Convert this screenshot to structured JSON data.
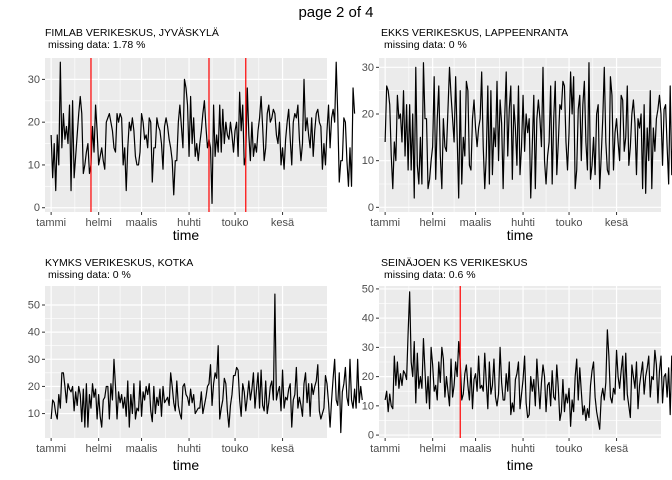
{
  "page_title": "page 2 of 4",
  "colors": {
    "panel_bg": "#ebebeb",
    "grid": "#ffffff",
    "line": "#000000",
    "missing_marker": "#ff0000",
    "text": "#4d4d4d"
  },
  "chart_data": [
    {
      "type": "line",
      "title": "FIMLAB VERIKESKUS, JYVÄSKYLÄ",
      "subtitle": "missing data:  1.78 %",
      "xlabel": "time",
      "ylabel": "",
      "x_ticks": [
        "tammi",
        "helmi",
        "maalis",
        "huhti",
        "touko",
        "kesä"
      ],
      "y_ticks": [
        0,
        10,
        20,
        30
      ],
      "ylim": [
        -1,
        35
      ],
      "xlim_days": [
        -4,
        180
      ],
      "missing_marker_days": [
        26,
        103,
        127
      ],
      "values": [
        17,
        7,
        15,
        4,
        17,
        10,
        34,
        14,
        22,
        16,
        19,
        15,
        24,
        4,
        25,
        7,
        12,
        17,
        22,
        26,
        22,
        8,
        10,
        13,
        15,
        8,
        10,
        19,
        13,
        24,
        18,
        10,
        12,
        14,
        11,
        9,
        20,
        21,
        22,
        20,
        18,
        14,
        13,
        22,
        20,
        22,
        21,
        10,
        14,
        4,
        14,
        20,
        18,
        21,
        18,
        12,
        10,
        10,
        13,
        22,
        20,
        16,
        17,
        14,
        21,
        20,
        6,
        14,
        14,
        21,
        19,
        18,
        15,
        9,
        19,
        21,
        19,
        16,
        14,
        11,
        3,
        11,
        11,
        20,
        24,
        19,
        14,
        30,
        28,
        24,
        12,
        26,
        15,
        21,
        12,
        15,
        11,
        15,
        18,
        22,
        25,
        19,
        14,
        16,
        14,
        1,
        24,
        12,
        17,
        13,
        24,
        13,
        23,
        15,
        20,
        17,
        16,
        20,
        17,
        13,
        18,
        20,
        12,
        27,
        18,
        24,
        10,
        12,
        28,
        17,
        11,
        20,
        12,
        15,
        13,
        18,
        21,
        26,
        19,
        11,
        14,
        22,
        24,
        20,
        21,
        23,
        22,
        17,
        15,
        20,
        10,
        14,
        9,
        16,
        20,
        23,
        16,
        10,
        20,
        22,
        21,
        24,
        16,
        11,
        15,
        30,
        18,
        21,
        17,
        14,
        21,
        12,
        18,
        22,
        23,
        20,
        19,
        9,
        15,
        10,
        18,
        24,
        14,
        21,
        23,
        20,
        34,
        22,
        6,
        11,
        11,
        21,
        20,
        11,
        5,
        14,
        5,
        28,
        22
      ]
    },
    {
      "type": "line",
      "title": "EKKS VERIKESKUS, LAPPEENRANTA",
      "subtitle": "missing data:  0 %",
      "xlabel": "time",
      "ylabel": "",
      "x_ticks": [
        "tammi",
        "helmi",
        "maalis",
        "huhti",
        "touko",
        "kesä"
      ],
      "y_ticks": [
        0,
        10,
        20,
        30
      ],
      "ylim": [
        -1,
        32
      ],
      "xlim_days": [
        -4,
        180
      ],
      "missing_marker_days": [],
      "values": [
        14,
        26,
        25,
        22,
        11,
        4,
        14,
        10,
        24,
        19,
        20,
        14,
        25,
        11,
        22,
        8,
        22,
        8,
        20,
        2,
        30,
        9,
        5,
        15,
        5,
        31,
        19,
        19,
        4,
        6,
        10,
        13,
        28,
        6,
        19,
        26,
        11,
        4,
        19,
        13,
        12,
        21,
        30,
        24,
        19,
        14,
        28,
        15,
        2,
        25,
        5,
        15,
        11,
        27,
        25,
        9,
        8,
        19,
        23,
        17,
        13,
        17,
        19,
        29,
        13,
        4,
        11,
        26,
        5,
        25,
        7,
        17,
        13,
        27,
        10,
        23,
        18,
        4,
        19,
        29,
        11,
        21,
        26,
        6,
        22,
        17,
        9,
        26,
        7,
        13,
        24,
        12,
        20,
        16,
        19,
        2,
        13,
        24,
        4,
        19,
        23,
        19,
        13,
        30,
        10,
        5,
        11,
        14,
        26,
        5,
        19,
        27,
        7,
        14,
        22,
        21,
        27,
        26,
        14,
        8,
        16,
        29,
        20,
        28,
        4,
        8,
        21,
        24,
        10,
        22,
        27,
        14,
        8,
        31,
        6,
        9,
        15,
        7,
        20,
        22,
        4,
        11,
        19,
        30,
        14,
        8,
        7,
        28,
        24,
        8,
        16,
        19,
        14,
        10,
        24,
        23,
        12,
        15,
        26,
        9,
        13,
        20,
        23,
        18,
        7,
        19,
        17,
        20,
        4,
        22,
        3,
        17,
        10,
        25,
        4,
        17,
        12,
        19,
        21,
        24,
        20,
        9,
        21,
        22,
        13,
        5,
        26,
        7,
        17,
        10,
        20,
        24,
        20,
        10,
        5,
        12,
        21,
        21,
        19,
        14,
        11,
        6,
        12,
        2
      ]
    },
    {
      "type": "line",
      "title": "KYMKS VERIKESKUS, KOTKA",
      "subtitle": "missing data:  0 %",
      "xlabel": "time",
      "ylabel": "",
      "x_ticks": [
        "tammi",
        "helmi",
        "maalis",
        "huhti",
        "touko",
        "kesä"
      ],
      "y_ticks": [
        10,
        20,
        30,
        40,
        50
      ],
      "ylim": [
        1,
        57
      ],
      "xlim_days": [
        -4,
        180
      ],
      "missing_marker_days": [],
      "values": [
        8,
        15,
        14,
        10,
        8,
        17,
        12,
        25,
        25,
        20,
        14,
        21,
        19,
        18,
        20,
        11,
        18,
        13,
        20,
        17,
        7,
        19,
        5,
        21,
        5,
        17,
        12,
        21,
        16,
        19,
        8,
        17,
        9,
        5,
        15,
        16,
        20,
        20,
        8,
        21,
        15,
        30,
        20,
        8,
        18,
        14,
        17,
        12,
        16,
        9,
        22,
        5,
        17,
        10,
        21,
        8,
        12,
        11,
        22,
        9,
        18,
        15,
        20,
        17,
        21,
        11,
        7,
        20,
        10,
        16,
        13,
        19,
        9,
        20,
        14,
        15,
        16,
        13,
        25,
        20,
        14,
        11,
        22,
        13,
        10,
        8,
        20,
        21,
        17,
        16,
        13,
        19,
        14,
        17,
        10,
        11,
        12,
        12,
        18,
        10,
        13,
        16,
        20,
        21,
        28,
        13,
        21,
        25,
        23,
        35,
        8,
        12,
        15,
        23,
        21,
        11,
        5,
        13,
        17,
        24,
        24,
        27,
        26,
        15,
        9,
        21,
        18,
        11,
        16,
        22,
        15,
        19,
        25,
        12,
        19,
        25,
        12,
        26,
        13,
        11,
        22,
        10,
        14,
        20,
        22,
        15,
        54,
        15,
        18,
        20,
        11,
        26,
        12,
        16,
        15,
        19,
        21,
        5,
        15,
        17,
        27,
        12,
        16,
        13,
        9,
        21,
        25,
        14,
        21,
        9,
        21,
        17,
        20,
        22,
        28,
        11,
        8,
        10,
        12,
        24,
        21,
        14,
        5,
        15,
        23,
        30,
        15,
        13,
        25,
        3,
        18,
        21,
        27,
        16,
        13,
        30,
        15,
        12,
        19,
        12,
        30,
        14,
        20,
        15
      ]
    },
    {
      "type": "line",
      "title": "SEINÄJOEN KS VERIKESKUS",
      "subtitle": "missing data:  0.6 %",
      "xlabel": "time",
      "ylabel": "",
      "x_ticks": [
        "tammi",
        "helmi",
        "maalis",
        "huhti",
        "touko",
        "kesä"
      ],
      "y_ticks": [
        0,
        10,
        20,
        30,
        40,
        50
      ],
      "ylim": [
        -1,
        51
      ],
      "xlim_days": [
        -4,
        180
      ],
      "missing_marker_days": [
        49
      ],
      "values": [
        12,
        15,
        8,
        14,
        10,
        9,
        27,
        17,
        25,
        16,
        21,
        17,
        22,
        21,
        19,
        35,
        49,
        25,
        20,
        32,
        11,
        28,
        16,
        20,
        16,
        33,
        22,
        11,
        20,
        9,
        30,
        24,
        15,
        17,
        12,
        25,
        18,
        30,
        26,
        13,
        20,
        15,
        10,
        26,
        13,
        17,
        25,
        20,
        32,
        25,
        12,
        14,
        21,
        24,
        17,
        12,
        23,
        9,
        19,
        21,
        15,
        27,
        16,
        17,
        15,
        28,
        18,
        9,
        25,
        14,
        17,
        26,
        13,
        10,
        14,
        30,
        18,
        12,
        12,
        21,
        15,
        25,
        7,
        11,
        8,
        19,
        21,
        25,
        9,
        14,
        19,
        27,
        11,
        6,
        7,
        20,
        15,
        19,
        10,
        26,
        17,
        9,
        18,
        24,
        20,
        8,
        17,
        18,
        10,
        22,
        13,
        12,
        24,
        16,
        5,
        8,
        19,
        8,
        14,
        11,
        16,
        3,
        12,
        8,
        20,
        26,
        12,
        23,
        15,
        7,
        10,
        5,
        9,
        6,
        17,
        22,
        25,
        13,
        8,
        5,
        2,
        13,
        16,
        12,
        18,
        36,
        27,
        13,
        11,
        16,
        14,
        29,
        20,
        16,
        22,
        27,
        12,
        28,
        14,
        10,
        6,
        24,
        20,
        16,
        25,
        9,
        17,
        21,
        25,
        14,
        20,
        23,
        27,
        13,
        20,
        19,
        29,
        24,
        11,
        22,
        27,
        11,
        20,
        21,
        13,
        23,
        7,
        27,
        18,
        10,
        16,
        25,
        19,
        30,
        8,
        27,
        13,
        21,
        8,
        14,
        9,
        26,
        20,
        17,
        9,
        28,
        11,
        9,
        9,
        10
      ]
    }
  ]
}
